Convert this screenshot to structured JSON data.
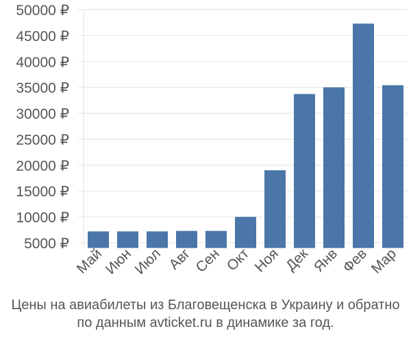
{
  "chart_data": {
    "type": "bar",
    "categories": [
      "Май",
      "Июн",
      "Июл",
      "Авг",
      "Сен",
      "Окт",
      "Ноя",
      "Дек",
      "Янв",
      "Фев",
      "Мар"
    ],
    "values": [
      7200,
      7200,
      7200,
      7300,
      7300,
      10000,
      19000,
      33700,
      35000,
      47300,
      35400
    ],
    "yticks": [
      "5000 ₽",
      "10000 ₽",
      "15000 ₽",
      "20000 ₽",
      "25000 ₽",
      "30000 ₽",
      "35000 ₽",
      "40000 ₽",
      "45000 ₽",
      "50000 ₽"
    ],
    "ytick_values": [
      5000,
      10000,
      15000,
      20000,
      25000,
      30000,
      35000,
      40000,
      45000,
      50000
    ],
    "ylim": [
      4000,
      50000
    ],
    "grid": true,
    "colors": {
      "bar": "#4a76a8",
      "grid": "#e3e3e3",
      "axis_text": "#555555"
    }
  },
  "caption": {
    "line1": "Цены на авиабилеты из Благовещенска в Украину и обратно",
    "line2": "по данным avticket.ru в динамике за год."
  }
}
